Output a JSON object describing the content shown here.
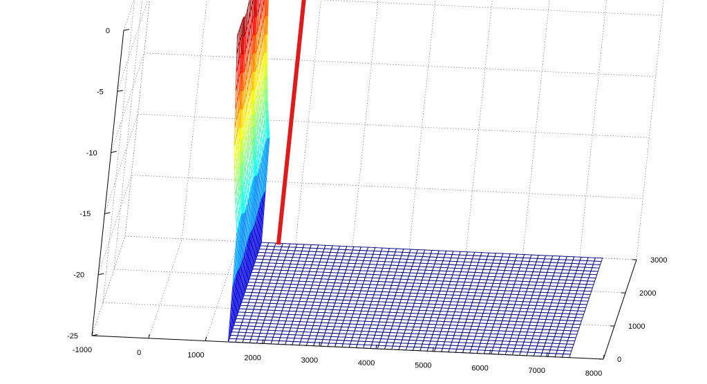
{
  "chart_data": {
    "type": "surface",
    "title": "",
    "xlabel": "",
    "ylabel": "",
    "zlabel": "",
    "x_ticks": [
      -1000,
      0,
      1000,
      2000,
      3000,
      4000,
      5000,
      6000,
      7000,
      8000
    ],
    "y_ticks": [
      0,
      1000,
      2000,
      3000
    ],
    "z_ticks": [
      0,
      -5,
      -10,
      -15,
      -20,
      -25
    ],
    "xlim": [
      -1000,
      8000
    ],
    "ylim": [
      0,
      3000
    ],
    "zlim": [
      -25,
      0
    ],
    "grid": true,
    "colormap": "jet",
    "surface": {
      "x_range": [
        1000,
        7500
      ],
      "y_range": [
        0,
        3000
      ],
      "z_floor": -25,
      "x_profile": [
        {
          "x": 1000,
          "z": 0
        },
        {
          "x": 1050,
          "z": -3
        },
        {
          "x": 1100,
          "z": -6
        },
        {
          "x": 1150,
          "z": -9
        },
        {
          "x": 1200,
          "z": -11
        },
        {
          "x": 1250,
          "z": -13
        },
        {
          "x": 1300,
          "z": -14.5
        },
        {
          "x": 1350,
          "z": -16
        },
        {
          "x": 1400,
          "z": -25
        },
        {
          "x": 7500,
          "z": -25
        }
      ]
    },
    "marker": {
      "x": 1900,
      "y": 1500,
      "z_range": [
        -21,
        0
      ],
      "color": "#e31a1c"
    }
  }
}
